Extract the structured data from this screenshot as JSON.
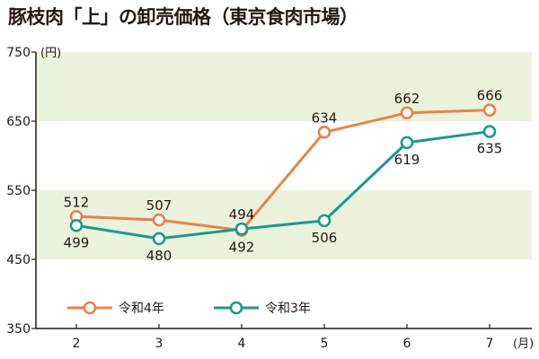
{
  "title": "豚枝肉「上」の卸売価格（東京食肉市場）",
  "chart_data": {
    "type": "line",
    "title": "豚枝肉「上」の卸売価格（東京食肉市場）",
    "y_unit": "(円)",
    "x_unit": "(月)",
    "x": [
      2,
      3,
      4,
      5,
      6,
      7
    ],
    "ylim": [
      350,
      750
    ],
    "yticks": [
      350,
      450,
      550,
      650,
      750
    ],
    "shaded_bands": [
      [
        450,
        550
      ],
      [
        650,
        750
      ]
    ],
    "legend_placement": "bottom-left",
    "series": [
      {
        "name": "令和4年",
        "color": "#e8824a",
        "values": [
          512,
          507,
          492,
          634,
          662,
          666
        ],
        "label_side": [
          "above",
          "above",
          "below",
          "above",
          "above",
          "above"
        ]
      },
      {
        "name": "令和3年",
        "color": "#1a9a8a",
        "values": [
          499,
          480,
          494,
          506,
          619,
          635
        ],
        "label_side": [
          "below",
          "below",
          "above",
          "below",
          "below",
          "below"
        ]
      }
    ]
  },
  "colors": {
    "band": "#eaf2dc",
    "axis": "#231815"
  }
}
